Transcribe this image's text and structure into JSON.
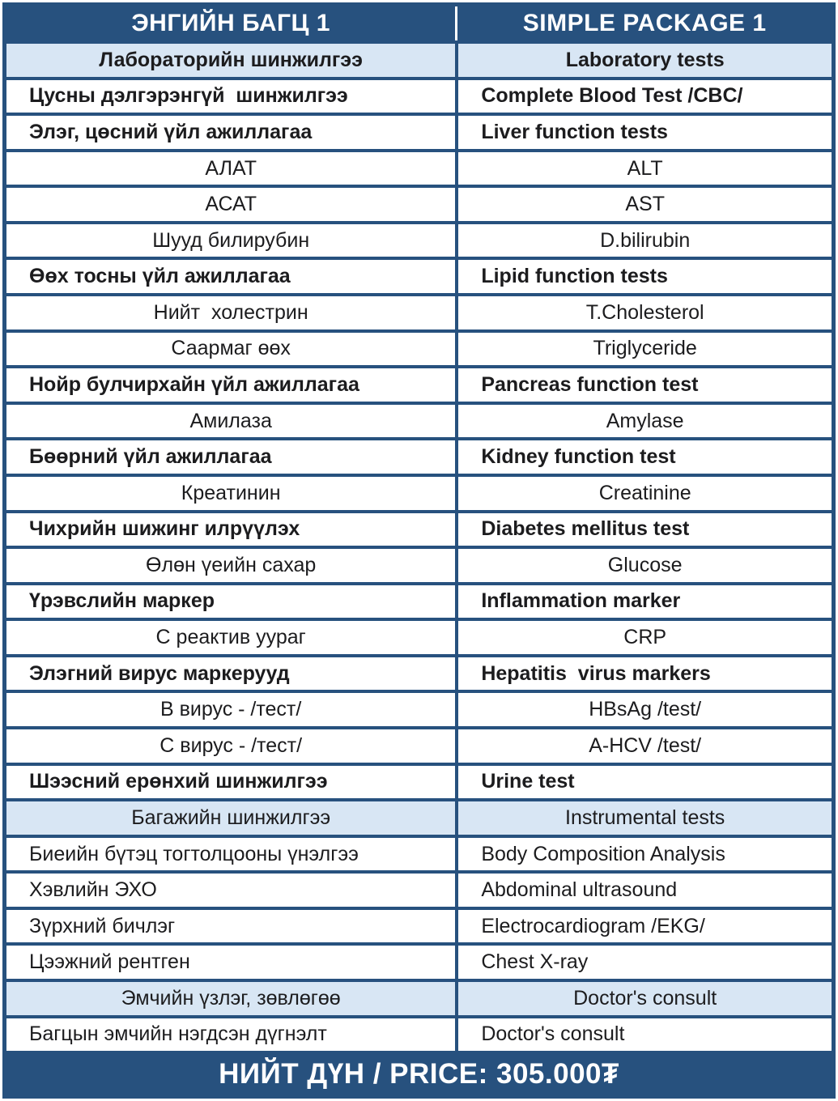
{
  "colors": {
    "navy": "#27517E",
    "light_blue": "#D8E6F4",
    "text_dark": "#1C1C1E",
    "text_white": "#FFFFFF"
  },
  "table": {
    "header": {
      "mn": "ЭНГИЙН БАГЦ 1",
      "en": "SIMPLE PACKAGE 1"
    },
    "rows": [
      {
        "variant": "subheader-bold",
        "mn": "Лабораторийн шинжилгээ",
        "en": "Laboratory tests"
      },
      {
        "variant": "group",
        "mn": "Цусны дэлгэрэнгүй  шинжилгээ",
        "en": "Complete Blood Test /CBC/"
      },
      {
        "variant": "group",
        "mn": "Элэг, цөсний үйл ажиллагаа",
        "en": "Liver function tests"
      },
      {
        "variant": "item",
        "mn": "АЛАТ",
        "en": "ALT"
      },
      {
        "variant": "item",
        "mn": "АСАТ",
        "en": "AST"
      },
      {
        "variant": "item",
        "mn": "Шууд билирубин",
        "en": "D.bilirubin"
      },
      {
        "variant": "group",
        "mn": "Өөх тосны үйл ажиллагаа",
        "en": "Lipid function tests"
      },
      {
        "variant": "item",
        "mn": "Нийт  холестрин",
        "en": "T.Cholesterol"
      },
      {
        "variant": "item",
        "mn": "Саармаг өөх",
        "en": "Triglyceride"
      },
      {
        "variant": "group",
        "mn": "Нойр булчирхайн үйл ажиллагаа",
        "en": "Pancreas function test"
      },
      {
        "variant": "item",
        "mn": "Амилаза",
        "en": "Amylase"
      },
      {
        "variant": "group",
        "mn": "Бөөрний үйл ажиллагаа",
        "en": "Kidney function test"
      },
      {
        "variant": "item",
        "mn": "Креатинин",
        "en": "Creatinine"
      },
      {
        "variant": "group",
        "mn": "Чихрийн шижинг илрүүлэх",
        "en": "Diabetes mellitus test"
      },
      {
        "variant": "item",
        "mn": "Өлөн үеийн сахар",
        "en": "Glucose"
      },
      {
        "variant": "group",
        "mn": "Үрэвслийн маркер",
        "en": "Inflammation marker"
      },
      {
        "variant": "item",
        "mn": "С реактив уураг",
        "en": "CRP"
      },
      {
        "variant": "group",
        "mn": "Элэгний вирус маркерууд",
        "en": "Hepatitis  virus markers"
      },
      {
        "variant": "item",
        "mn": "В вирус - /тест/",
        "en": "HBsAg /test/"
      },
      {
        "variant": "item",
        "mn": "С вирус - /тест/",
        "en": "A-HCV /test/"
      },
      {
        "variant": "group",
        "mn": "Шээсний ерөнхий шинжилгээ",
        "en": "Urine test"
      },
      {
        "variant": "subheader",
        "mn": "Багажийн шинжилгээ",
        "en": "Instrumental tests"
      },
      {
        "variant": "service",
        "mn": "Биеийн бүтэц тогтолцооны үнэлгээ",
        "en": "Body Composition Analysis"
      },
      {
        "variant": "service",
        "mn": "Хэвлийн ЭХО",
        "en": "Abdominal ultrasound"
      },
      {
        "variant": "service",
        "mn": "Зүрхний бичлэг",
        "en": "Electrocardiogram /EKG/"
      },
      {
        "variant": "service",
        "mn": "Цээжний рентген",
        "en": "Chest X-ray"
      },
      {
        "variant": "subheader",
        "mn": "Эмчийн үзлэг, зөвлөгөө",
        "en": "Doctor's consult"
      },
      {
        "variant": "service",
        "mn": "Багцын эмчийн нэгдсэн дүгнэлт",
        "en": "Doctor's consult"
      }
    ],
    "footer": {
      "total_label": "НИЙТ ДҮН / PRICE: 305.000₮"
    }
  }
}
